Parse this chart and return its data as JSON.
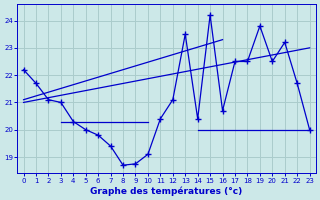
{
  "title": "Graphe des températures (°c)",
  "background_color": "#cce8e8",
  "grid_color": "#aacccc",
  "line_color": "#0000cc",
  "hours": [
    0,
    1,
    2,
    3,
    4,
    5,
    6,
    7,
    8,
    9,
    10,
    11,
    12,
    13,
    14,
    15,
    16,
    17,
    18,
    19,
    20,
    21,
    22,
    23
  ],
  "temp_main": [
    22.2,
    21.7,
    21.1,
    21.0,
    20.3,
    20.0,
    19.8,
    19.4,
    18.7,
    18.75,
    19.1,
    20.4,
    21.1,
    23.5,
    20.4,
    24.2,
    20.7,
    22.5,
    22.5,
    23.8,
    22.5,
    23.2,
    21.7,
    20.0
  ],
  "hline1_x": [
    3,
    10
  ],
  "hline1_y": [
    20.3,
    20.3
  ],
  "hline2_x": [
    14,
    23
  ],
  "hline2_y": [
    20.0,
    20.0
  ],
  "trend1_x": [
    0,
    16
  ],
  "trend1_y": [
    21.1,
    23.3
  ],
  "trend2_x": [
    0,
    23
  ],
  "trend2_y": [
    21.0,
    23.0
  ],
  "ylim": [
    18.4,
    24.6
  ],
  "yticks": [
    19,
    20,
    21,
    22,
    23,
    24
  ],
  "xticks": [
    0,
    1,
    2,
    3,
    4,
    5,
    6,
    7,
    8,
    9,
    10,
    11,
    12,
    13,
    14,
    15,
    16,
    17,
    18,
    19,
    20,
    21,
    22,
    23
  ]
}
